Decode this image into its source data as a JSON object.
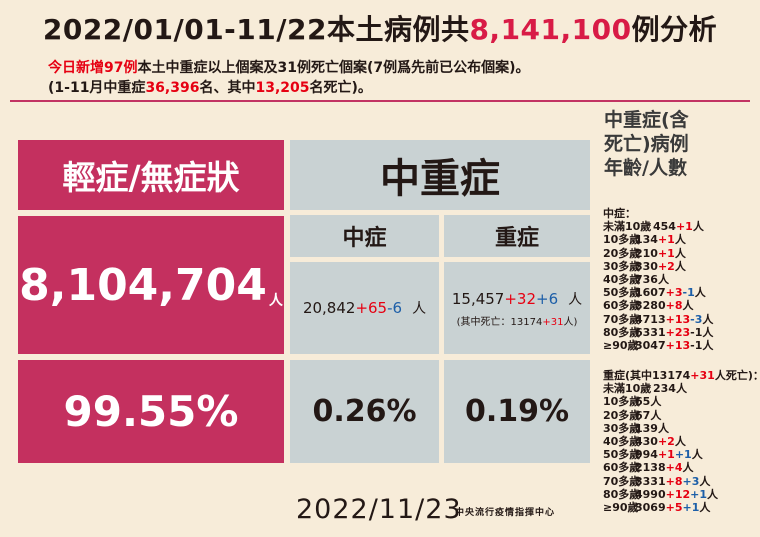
{
  "header": {
    "title_prefix": "2022/01/01-11/22本土病例共",
    "title_number": "8,141,100",
    "title_suffix": "例分析",
    "sub1": {
      "highlight": "今日新增97例",
      "text": "本土中重症以上個案及31例死亡個案(7例爲先前已公布個案)。"
    },
    "sub2": {
      "p1": "(1-11月中重症",
      "n1": "36,396",
      "p2": "名、其中",
      "n2": "13,205",
      "p3": "名死亡)。"
    }
  },
  "table": {
    "mild_label": "輕症/無症狀",
    "mild_count": "8,104,704",
    "mild_unit": "人",
    "mild_pct": "99.55%",
    "severe_label": "中重症",
    "moderate_label": "中症",
    "serious_label": "重症",
    "moderate": {
      "base": "20,842",
      "plus": "+65",
      "minus": "-6",
      "unit": "人"
    },
    "serious": {
      "base": "15,457",
      "plus": "+32",
      "plus2": "+6",
      "unit": "人",
      "note_prefix": "(其中死亡：13174",
      "note_plus": "+31",
      "note_suffix": "人)"
    },
    "moderate_pct": "0.26%",
    "serious_pct": "0.19%"
  },
  "side": {
    "title_lines": [
      "中重症(含",
      "死亡)病例",
      "年齡/人數"
    ],
    "moderate_heading": "中症：",
    "moderate_rows": [
      {
        "age": "未滿10歲",
        "base": "454",
        "plus": "+1",
        "minus": "",
        "minus_color": "",
        "unit": "人"
      },
      {
        "age": "10多歲",
        "base": "134",
        "plus": "+1",
        "minus": "",
        "minus_color": "",
        "unit": "人"
      },
      {
        "age": "20多歲",
        "base": "210",
        "plus": "+1",
        "minus": "",
        "minus_color": "",
        "unit": "人"
      },
      {
        "age": "30多歲",
        "base": "330",
        "plus": "+2",
        "minus": "",
        "minus_color": "",
        "unit": "人"
      },
      {
        "age": "40多歲",
        "base": "736",
        "plus": "",
        "minus": "",
        "minus_color": "",
        "unit": "人"
      },
      {
        "age": "50多歲",
        "base": "1607",
        "plus": "+3",
        "minus": "-1",
        "minus_color": "blue",
        "unit": "人"
      },
      {
        "age": "60多歲",
        "base": "3280",
        "plus": "+8",
        "minus": "",
        "minus_color": "",
        "unit": "人"
      },
      {
        "age": "70多歲",
        "base": "4713",
        "plus": "+13",
        "minus": "-3",
        "minus_color": "blue",
        "unit": "人"
      },
      {
        "age": "80多歲",
        "base": "6331",
        "plus": "+23",
        "minus": "-1",
        "minus_color": "",
        "unit": "人"
      },
      {
        "age": "≥90歲",
        "base": "3047",
        "plus": "+13",
        "minus": "-1",
        "minus_color": "",
        "unit": "人"
      }
    ],
    "serious_heading_prefix": "重症(其中13174",
    "serious_heading_plus": "+31",
    "serious_heading_suffix": "人死亡)：",
    "serious_rows": [
      {
        "age": "未滿10歲",
        "base": "234",
        "plus": "",
        "plus2": "",
        "unit": "人"
      },
      {
        "age": "10多歲",
        "base": "65",
        "plus": "",
        "plus2": "",
        "unit": "人"
      },
      {
        "age": "20多歲",
        "base": "67",
        "plus": "",
        "plus2": "",
        "unit": "人"
      },
      {
        "age": "30多歲",
        "base": "139",
        "plus": "",
        "plus2": "",
        "unit": "人"
      },
      {
        "age": "40多歲",
        "base": "430",
        "plus": "+2",
        "plus2": "",
        "unit": "人"
      },
      {
        "age": "50多歲",
        "base": "994",
        "plus": "+1",
        "plus2": "+1",
        "unit": "人"
      },
      {
        "age": "60多歲",
        "base": "2138",
        "plus": "+4",
        "plus2": "",
        "unit": "人"
      },
      {
        "age": "70多歲",
        "base": "3331",
        "plus": "+8",
        "plus2": "+3",
        "unit": "人"
      },
      {
        "age": "80多歲",
        "base": "4990",
        "plus": "+12",
        "plus2": "+1",
        "unit": "人"
      },
      {
        "age": "≥90歲",
        "base": "3069",
        "plus": "+5",
        "plus2": "+1",
        "unit": "人"
      }
    ]
  },
  "footer": {
    "date": "2022/11/23",
    "source": "中央流行疫情指揮中心"
  }
}
